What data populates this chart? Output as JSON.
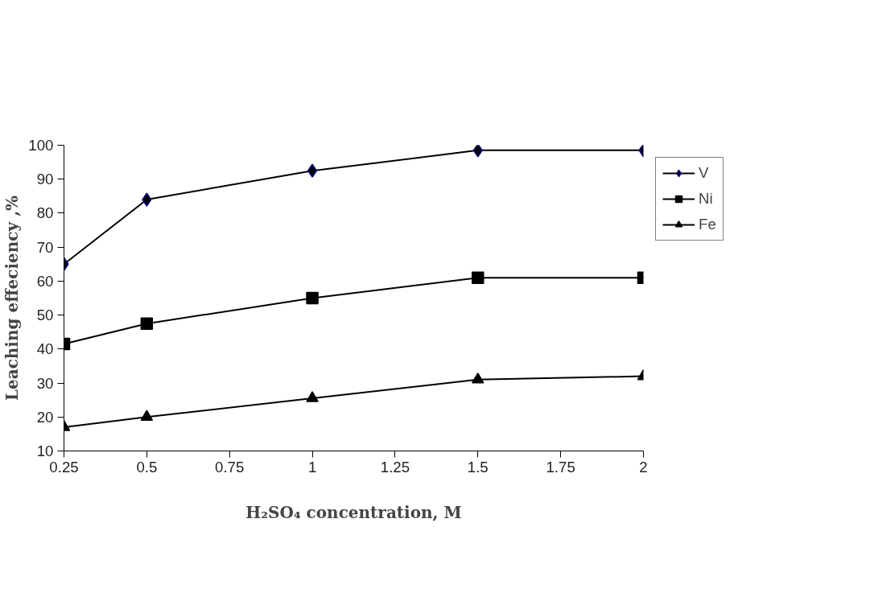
{
  "chart_data": {
    "type": "line",
    "xlabel": "H₂SO₄ concentration, M",
    "ylabel": "Leaching effeciency ,%",
    "x": [
      0.25,
      0.5,
      1,
      1.5,
      2
    ],
    "series": [
      {
        "name": "V",
        "color": "#000000",
        "marker": "diamond",
        "values": [
          65,
          84,
          92.5,
          98.5,
          98.5
        ]
      },
      {
        "name": "Ni",
        "color": "#000000",
        "marker": "square",
        "values": [
          41.5,
          47.5,
          55,
          61,
          61
        ]
      },
      {
        "name": "Fe",
        "color": "#000000",
        "marker": "triangle",
        "values": [
          17,
          20,
          25.5,
          31,
          32
        ]
      }
    ],
    "xlim": [
      0.25,
      2
    ],
    "xticks": [
      0.25,
      0.5,
      0.75,
      1,
      1.25,
      1.5,
      1.75,
      2
    ],
    "ylim": [
      10,
      100
    ],
    "yticks": [
      10,
      20,
      30,
      40,
      50,
      60,
      70,
      80,
      90,
      100
    ],
    "grid": false,
    "legend": "right",
    "line_style": "solid"
  }
}
